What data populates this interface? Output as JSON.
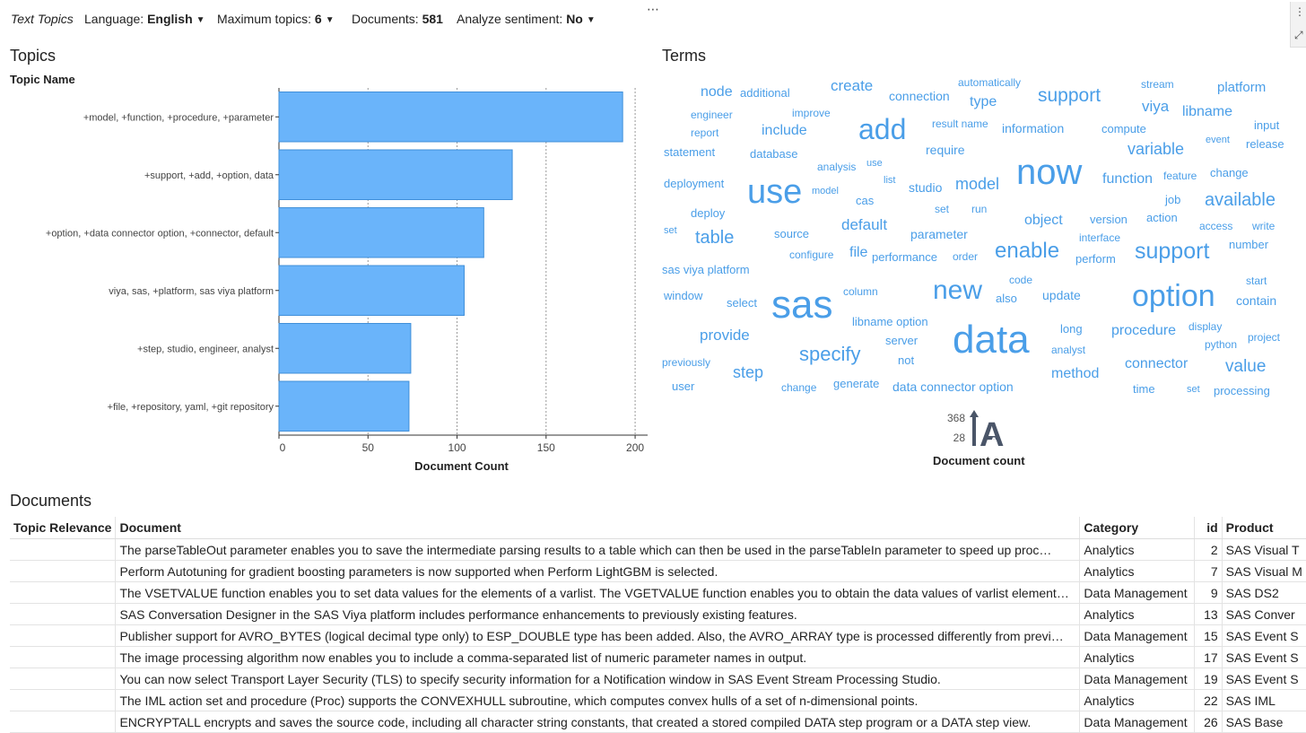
{
  "toolbar": {
    "app_title": "Text Topics",
    "language_label": "Language:",
    "language_value": "English",
    "max_topics_label": "Maximum topics:",
    "max_topics_value": "6",
    "documents_label": "Documents:",
    "documents_value": "581",
    "sentiment_label": "Analyze sentiment:",
    "sentiment_value": "No",
    "more_icon": "more-horizontal-icon"
  },
  "topics": {
    "title": "Topics",
    "axis_category_label": "Topic Name"
  },
  "chart_data": {
    "type": "bar",
    "orientation": "horizontal",
    "categories": [
      "+model, +function, +procedure, +parameter",
      "+support, +add, +option, data",
      "+option, +data connector option, +connector, default",
      "viya, sas, +platform, sas viya platform",
      "+step, studio, engineer, analyst",
      "+file, +repository, yaml, +git repository"
    ],
    "values": [
      193,
      131,
      115,
      104,
      74,
      73
    ],
    "xlabel": "Document Count",
    "ylabel": "Topic Name",
    "xlim": [
      0,
      205
    ],
    "xticks": [
      0,
      50,
      100,
      150,
      200
    ],
    "grid": "vertical dashed at 50,100,150",
    "color": "#6ab4fa"
  },
  "terms": {
    "title": "Terms",
    "legend_label": "Document count",
    "legend_max": "368",
    "legend_min": "28",
    "words": [
      {
        "text": "node",
        "size": 16
      },
      {
        "text": "additional",
        "size": 13
      },
      {
        "text": "create",
        "size": 17
      },
      {
        "text": "connection",
        "size": 14
      },
      {
        "text": "automatically",
        "size": 12
      },
      {
        "text": "type",
        "size": 16
      },
      {
        "text": "support",
        "size": 21
      },
      {
        "text": "stream",
        "size": 12
      },
      {
        "text": "platform",
        "size": 15
      },
      {
        "text": "engineer",
        "size": 12
      },
      {
        "text": "improve",
        "size": 12
      },
      {
        "text": "add",
        "size": 32
      },
      {
        "text": "result name",
        "size": 12
      },
      {
        "text": "viya",
        "size": 17
      },
      {
        "text": "libname",
        "size": 16
      },
      {
        "text": "report",
        "size": 12
      },
      {
        "text": "include",
        "size": 16
      },
      {
        "text": "information",
        "size": 14
      },
      {
        "text": "compute",
        "size": 13
      },
      {
        "text": "input",
        "size": 13
      },
      {
        "text": "statement",
        "size": 13
      },
      {
        "text": "database",
        "size": 13
      },
      {
        "text": "require",
        "size": 14
      },
      {
        "text": "now",
        "size": 40
      },
      {
        "text": "variable",
        "size": 18
      },
      {
        "text": "event",
        "size": 11
      },
      {
        "text": "release",
        "size": 13
      },
      {
        "text": "analysis",
        "size": 12
      },
      {
        "text": "use",
        "size": 11
      },
      {
        "text": "function",
        "size": 16
      },
      {
        "text": "feature",
        "size": 12
      },
      {
        "text": "change",
        "size": 13
      },
      {
        "text": "deployment",
        "size": 13
      },
      {
        "text": "use",
        "size": 38
      },
      {
        "text": "model",
        "size": 11
      },
      {
        "text": "list",
        "size": 11
      },
      {
        "text": "studio",
        "size": 14
      },
      {
        "text": "model",
        "size": 18
      },
      {
        "text": "cas",
        "size": 13
      },
      {
        "text": "job",
        "size": 13
      },
      {
        "text": "available",
        "size": 20
      },
      {
        "text": "deploy",
        "size": 13
      },
      {
        "text": "set",
        "size": 12
      },
      {
        "text": "run",
        "size": 12
      },
      {
        "text": "action",
        "size": 13
      },
      {
        "text": "default",
        "size": 17
      },
      {
        "text": "object",
        "size": 16
      },
      {
        "text": "version",
        "size": 13
      },
      {
        "text": "set",
        "size": 11
      },
      {
        "text": "table",
        "size": 20
      },
      {
        "text": "source",
        "size": 13
      },
      {
        "text": "parameter",
        "size": 14
      },
      {
        "text": "interface",
        "size": 12
      },
      {
        "text": "access",
        "size": 12
      },
      {
        "text": "write",
        "size": 12
      },
      {
        "text": "configure",
        "size": 12
      },
      {
        "text": "file",
        "size": 16
      },
      {
        "text": "performance",
        "size": 13
      },
      {
        "text": "order",
        "size": 12
      },
      {
        "text": "enable",
        "size": 24
      },
      {
        "text": "perform",
        "size": 13
      },
      {
        "text": "support",
        "size": 25
      },
      {
        "text": "number",
        "size": 13
      },
      {
        "text": "sas viya platform",
        "size": 13
      },
      {
        "text": "code",
        "size": 12
      },
      {
        "text": "start",
        "size": 12
      },
      {
        "text": "window",
        "size": 13
      },
      {
        "text": "select",
        "size": 13
      },
      {
        "text": "sas",
        "size": 44
      },
      {
        "text": "column",
        "size": 12
      },
      {
        "text": "new",
        "size": 30
      },
      {
        "text": "also",
        "size": 13
      },
      {
        "text": "update",
        "size": 14
      },
      {
        "text": "option",
        "size": 34
      },
      {
        "text": "contain",
        "size": 14
      },
      {
        "text": "libname option",
        "size": 13
      },
      {
        "text": "long",
        "size": 13
      },
      {
        "text": "display",
        "size": 12
      },
      {
        "text": "provide",
        "size": 17
      },
      {
        "text": "server",
        "size": 13
      },
      {
        "text": "data",
        "size": 44
      },
      {
        "text": "procedure",
        "size": 16
      },
      {
        "text": "python",
        "size": 12
      },
      {
        "text": "project",
        "size": 12
      },
      {
        "text": "analyst",
        "size": 12
      },
      {
        "text": "specify",
        "size": 22
      },
      {
        "text": "not",
        "size": 13
      },
      {
        "text": "previously",
        "size": 12
      },
      {
        "text": "step",
        "size": 18
      },
      {
        "text": "method",
        "size": 16
      },
      {
        "text": "connector",
        "size": 16
      },
      {
        "text": "value",
        "size": 19
      },
      {
        "text": "user",
        "size": 13
      },
      {
        "text": "change",
        "size": 12
      },
      {
        "text": "generate",
        "size": 13
      },
      {
        "text": "data connector option",
        "size": 14
      },
      {
        "text": "time",
        "size": 13
      },
      {
        "text": "set",
        "size": 11
      },
      {
        "text": "processing",
        "size": 13
      }
    ]
  },
  "documents": {
    "title": "Documents",
    "columns": [
      "Topic Relevance",
      "Document",
      "Category",
      "id",
      "Product"
    ],
    "rows": [
      [
        "",
        "The parseTableOut parameter enables you to save the intermediate parsing results to a table which can then be used in the parseTableIn parameter to speed up proc…",
        "Analytics",
        "2",
        "SAS Visual T"
      ],
      [
        "",
        "Perform Autotuning for gradient boosting parameters is now supported when Perform LightGBM is selected.",
        "Analytics",
        "7",
        "SAS Visual M"
      ],
      [
        "",
        "The VSETVALUE function enables you to set data values for the elements of a varlist. The VGETVALUE function enables you to obtain the data values of varlist element…",
        "Data Management",
        "9",
        "SAS DS2"
      ],
      [
        "",
        "SAS Conversation Designer in the SAS Viya platform includes performance enhancements to previously existing features.",
        "Analytics",
        "13",
        "SAS Conver"
      ],
      [
        "",
        "Publisher support for AVRO_BYTES (logical decimal type only) to ESP_DOUBLE type has been added. Also, the AVRO_ARRAY type is processed differently from previ…",
        "Data Management",
        "15",
        "SAS Event S"
      ],
      [
        "",
        "The image processing algorithm now enables you to include a comma-separated list of numeric parameter names in output.",
        "Analytics",
        "17",
        "SAS Event S"
      ],
      [
        "",
        "You can now select Transport Layer Security (TLS) to specify security information for a Notification window in SAS Event Stream Processing Studio.",
        "Data Management",
        "19",
        "SAS Event S"
      ],
      [
        "",
        "The IML action set and procedure (Proc) supports the CONVEXHULL subroutine, which computes convex hulls of a set of n-dimensional points.",
        "Analytics",
        "22",
        "SAS IML"
      ],
      [
        "",
        "ENCRYPTALL encrypts and saves the source code, including all character string constants, that created a stored compiled DATA step program or a DATA step view.",
        "Data Management",
        "26",
        "SAS Base"
      ]
    ]
  }
}
